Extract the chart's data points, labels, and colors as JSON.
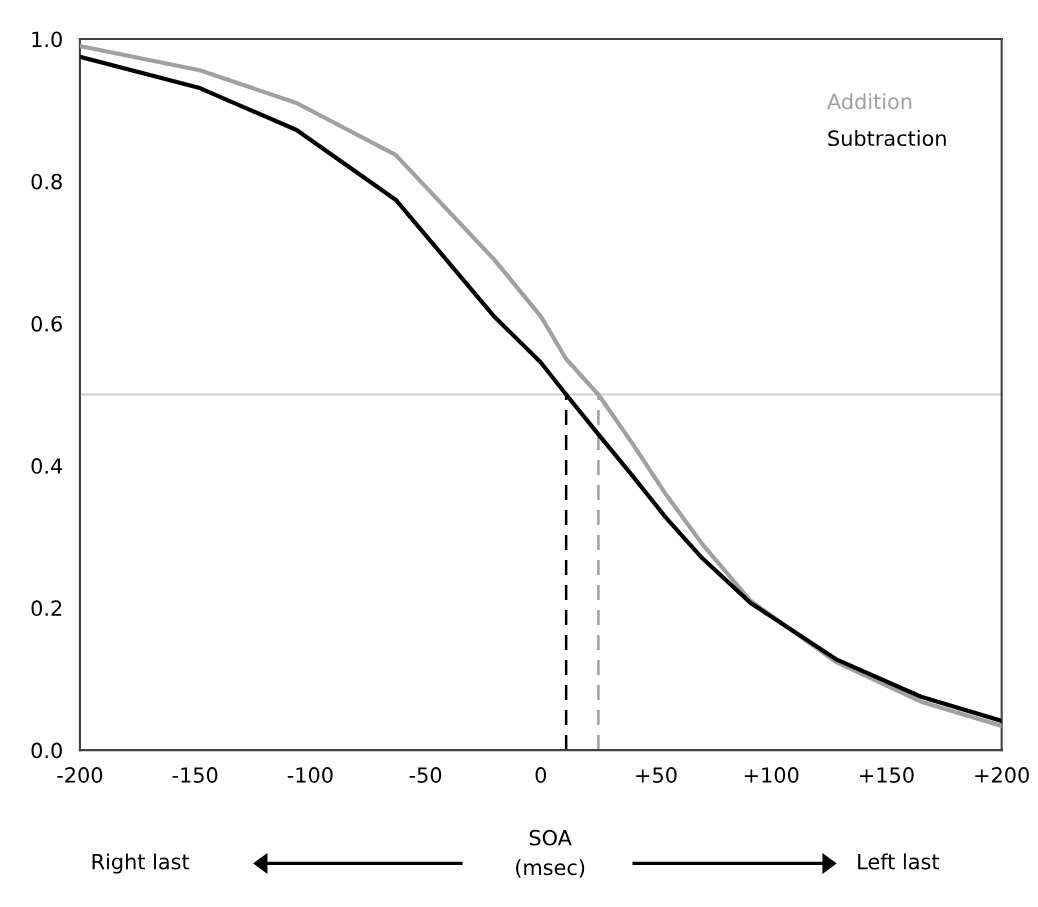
{
  "chart_data": {
    "type": "line",
    "xlabel": "SOA\n(msec)",
    "annotations": [
      "Right last",
      "Left last"
    ],
    "xlim": [
      -200,
      200
    ],
    "ylim": [
      0,
      1
    ],
    "xticks": [
      -200,
      -150,
      -100,
      -50,
      0,
      {
        "value": 50,
        "label": "+50"
      },
      {
        "value": 100,
        "label": "+100"
      },
      {
        "value": 150,
        "label": "+150"
      },
      {
        "value": 200,
        "label": "+200"
      }
    ],
    "yticks": [
      {
        "value": 0,
        "label": "0.0"
      },
      {
        "value": 0.2,
        "label": "0.2"
      },
      {
        "value": 0.4,
        "label": "0.4"
      },
      {
        "value": 0.6,
        "label": "0.6"
      },
      {
        "value": 0.8,
        "label": "0.8"
      },
      {
        "value": 1,
        "label": "1.0"
      }
    ],
    "grid": false,
    "legend": "top right",
    "marker": "none",
    "line_style": "solid",
    "ref_lines": [
      {
        "axis": "y",
        "value": 0.5,
        "color": "#d0d0d0"
      }
    ],
    "series": [
      {
        "name": "Addition",
        "color": "#a0a0a0",
        "x": [
          -200,
          -148,
          -106,
          -63,
          -20,
          0,
          11,
          25,
          40,
          54,
          70,
          91,
          128,
          165,
          200
        ],
        "values": [
          0.99,
          0.956,
          0.91,
          0.837,
          0.689,
          0.61,
          0.55,
          0.5,
          0.43,
          0.361,
          0.29,
          0.21,
          0.124,
          0.068,
          0.034
        ]
      },
      {
        "name": "Subtraction",
        "color": "#000000",
        "x": [
          -200,
          -148,
          -106,
          -63,
          -20,
          0,
          11,
          25,
          40,
          54,
          70,
          91,
          128,
          165,
          200
        ],
        "values": [
          0.975,
          0.931,
          0.872,
          0.774,
          0.609,
          0.545,
          0.5,
          0.444,
          0.385,
          0.328,
          0.27,
          0.207,
          0.128,
          0.075,
          0.041
        ]
      },
      {
        "color": "#000000",
        "line_style": "dashed",
        "x": [
          11,
          11
        ],
        "values": [
          0,
          0.5
        ]
      },
      {
        "color": "#a0a0a0",
        "line_style": "dashed",
        "x": [
          25,
          25
        ],
        "values": [
          0,
          0.5
        ]
      }
    ]
  }
}
